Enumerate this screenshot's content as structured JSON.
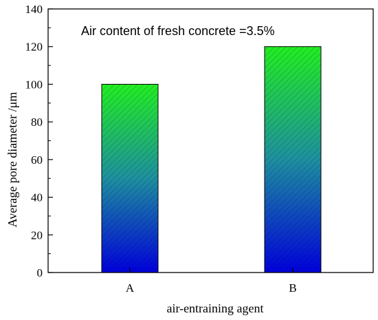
{
  "chart_data": {
    "type": "bar",
    "categories": [
      "A",
      "B"
    ],
    "values": [
      100,
      120
    ],
    "title": "",
    "xlabel": "air-entraining agent",
    "ylabel": "Average pore diameter /μm",
    "ylim": [
      0,
      140
    ],
    "yticks": [
      0,
      20,
      40,
      60,
      80,
      100,
      120,
      140
    ],
    "annotation": "Air content of fresh concrete =3.5%",
    "grid": false,
    "legend": "none",
    "bar_fill": "vertical gradient, blue at bottom to green at top, diagonal hatching",
    "colors": {
      "bottom": "#0000dd",
      "middle": "#1e90a0",
      "top": "#22ee22",
      "hatch": "#000000",
      "axis": "#000000"
    }
  }
}
